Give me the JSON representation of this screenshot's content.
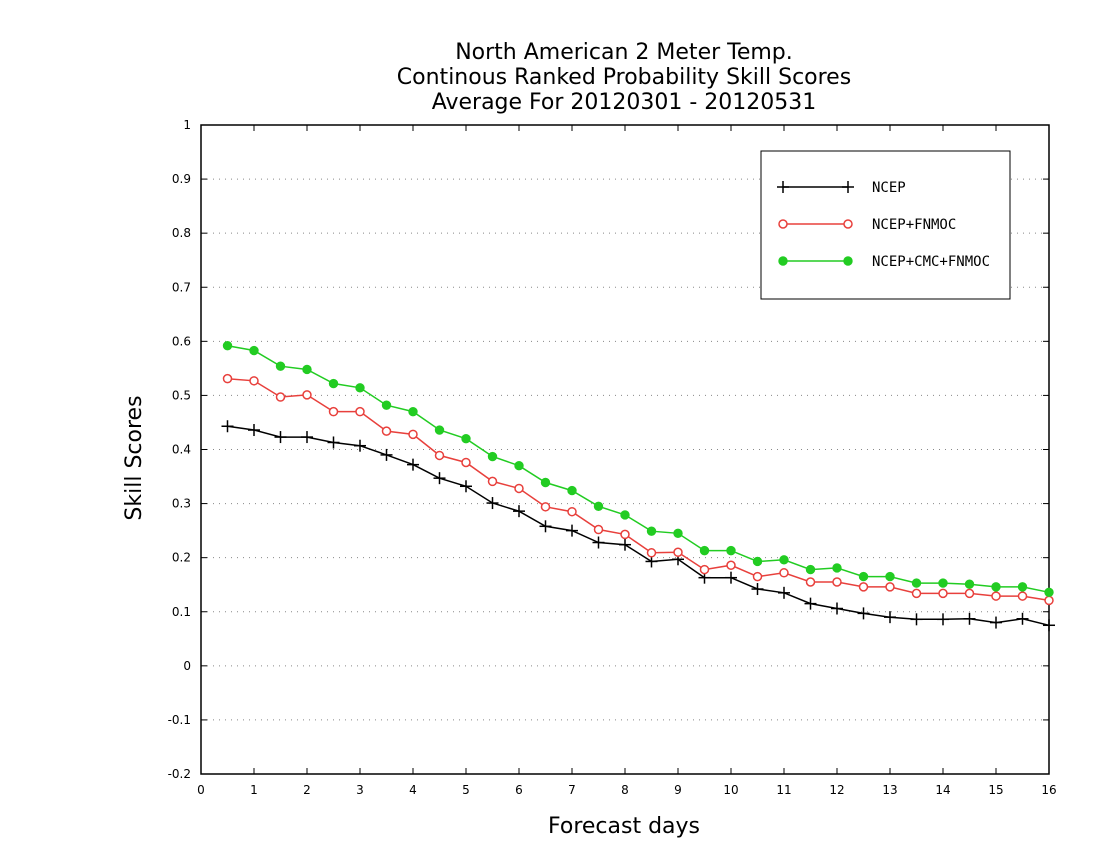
{
  "chart_data": {
    "type": "line",
    "title": [
      "North American 2 Meter Temp.",
      "Continous Ranked Probability Skill Scores",
      "Average For 20120301 - 20120531"
    ],
    "xlabel": "Forecast days",
    "ylabel": "Skill Scores",
    "xlim": [
      0,
      16
    ],
    "ylim": [
      -0.2,
      1
    ],
    "xticks": [
      "0",
      "1",
      "2",
      "3",
      "4",
      "5",
      "6",
      "7",
      "8",
      "9",
      "10",
      "11",
      "12",
      "13",
      "14",
      "15",
      "16"
    ],
    "yticks": [
      "-0.2",
      "-0.1",
      "0",
      "0.1",
      "0.2",
      "0.3",
      "0.4",
      "0.5",
      "0.6",
      "0.7",
      "0.8",
      "0.9",
      "1"
    ],
    "grid": "horizontal dotted",
    "legend_position": "top-right",
    "x": [
      0.5,
      1,
      1.5,
      2,
      2.5,
      3,
      3.5,
      4,
      4.5,
      5,
      5.5,
      6,
      6.5,
      7,
      7.5,
      8,
      8.5,
      9,
      9.5,
      10,
      10.5,
      11,
      11.5,
      12,
      12.5,
      13,
      13.5,
      14,
      14.5,
      15,
      15.5,
      16
    ],
    "series": [
      {
        "name": "NCEP",
        "color": "#000000",
        "marker": "plus",
        "values": [
          0.443,
          0.436,
          0.423,
          0.423,
          0.413,
          0.407,
          0.39,
          0.372,
          0.347,
          0.332,
          0.301,
          0.286,
          0.258,
          0.25,
          0.228,
          0.224,
          0.193,
          0.197,
          0.163,
          0.163,
          0.142,
          0.135,
          0.115,
          0.106,
          0.097,
          0.09,
          0.086,
          0.086,
          0.087,
          0.08,
          0.087,
          0.075
        ]
      },
      {
        "name": "NCEP+FNMOC",
        "color": "#e8403c",
        "marker": "open-circle",
        "values": [
          0.531,
          0.527,
          0.497,
          0.501,
          0.47,
          0.47,
          0.434,
          0.428,
          0.389,
          0.376,
          0.341,
          0.328,
          0.294,
          0.285,
          0.252,
          0.243,
          0.209,
          0.21,
          0.178,
          0.186,
          0.165,
          0.172,
          0.155,
          0.155,
          0.146,
          0.146,
          0.134,
          0.134,
          0.134,
          0.129,
          0.129,
          0.121
        ]
      },
      {
        "name": "NCEP+CMC+FNMOC",
        "color": "#22cc22",
        "marker": "filled-circle",
        "values": [
          0.592,
          0.583,
          0.554,
          0.548,
          0.522,
          0.514,
          0.482,
          0.47,
          0.436,
          0.42,
          0.387,
          0.37,
          0.339,
          0.324,
          0.295,
          0.279,
          0.249,
          0.245,
          0.213,
          0.213,
          0.193,
          0.196,
          0.178,
          0.181,
          0.165,
          0.165,
          0.153,
          0.153,
          0.151,
          0.146,
          0.146,
          0.136
        ]
      }
    ]
  }
}
